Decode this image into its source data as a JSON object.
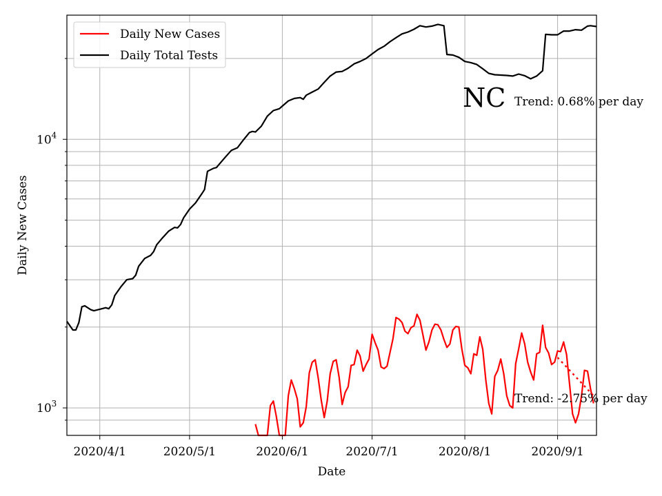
{
  "chart_data": {
    "type": "line",
    "title": "",
    "xlabel": "Date",
    "ylabel": "Daily New Cases",
    "yscale": "log",
    "ylim": [
      790,
      29000
    ],
    "xlim": [
      "2020-03-21",
      "2020-09-14"
    ],
    "grid": true,
    "legend_position": "top-left",
    "x_ticks": [
      {
        "date": "2020-04-01",
        "label": "2020/4/1"
      },
      {
        "date": "2020-05-01",
        "label": "2020/5/1"
      },
      {
        "date": "2020-06-01",
        "label": "2020/6/1"
      },
      {
        "date": "2020-07-01",
        "label": "2020/7/1"
      },
      {
        "date": "2020-08-01",
        "label": "2020/8/1"
      },
      {
        "date": "2020-09-01",
        "label": "2020/9/1"
      }
    ],
    "y_major_ticks": [
      {
        "value": 1000,
        "base": "10",
        "exp": "3"
      },
      {
        "value": 10000,
        "base": "10",
        "exp": "4"
      }
    ],
    "y_minor_ticks": [
      900,
      2000,
      3000,
      4000,
      5000,
      6000,
      7000,
      8000,
      9000,
      20000
    ],
    "annotations": {
      "state": "NC",
      "tests_trend": "Trend: 0.68% per day",
      "cases_trend": "Trend: -2.75% per day"
    },
    "series": [
      {
        "name": "Daily Total Tests",
        "color": "#000000",
        "points": [
          [
            "2020-03-21",
            2100
          ],
          [
            "2020-03-23",
            1950
          ],
          [
            "2020-03-24",
            1950
          ],
          [
            "2020-03-25",
            2080
          ],
          [
            "2020-03-26",
            2380
          ],
          [
            "2020-03-27",
            2400
          ],
          [
            "2020-03-29",
            2320
          ],
          [
            "2020-03-30",
            2300
          ],
          [
            "2020-04-01",
            2330
          ],
          [
            "2020-04-03",
            2360
          ],
          [
            "2020-04-04",
            2340
          ],
          [
            "2020-04-05",
            2420
          ],
          [
            "2020-04-06",
            2620
          ],
          [
            "2020-04-08",
            2820
          ],
          [
            "2020-04-10",
            3000
          ],
          [
            "2020-04-12",
            3030
          ],
          [
            "2020-04-13",
            3120
          ],
          [
            "2020-04-14",
            3370
          ],
          [
            "2020-04-16",
            3600
          ],
          [
            "2020-04-18",
            3700
          ],
          [
            "2020-04-19",
            3820
          ],
          [
            "2020-04-20",
            4050
          ],
          [
            "2020-04-22",
            4300
          ],
          [
            "2020-04-24",
            4550
          ],
          [
            "2020-04-26",
            4700
          ],
          [
            "2020-04-27",
            4680
          ],
          [
            "2020-04-28",
            4820
          ],
          [
            "2020-04-29",
            5100
          ],
          [
            "2020-05-01",
            5500
          ],
          [
            "2020-05-03",
            5800
          ],
          [
            "2020-05-05",
            6250
          ],
          [
            "2020-05-06",
            6500
          ],
          [
            "2020-05-07",
            7600
          ],
          [
            "2020-05-09",
            7800
          ],
          [
            "2020-05-10",
            7850
          ],
          [
            "2020-05-11",
            8100
          ],
          [
            "2020-05-13",
            8600
          ],
          [
            "2020-05-15",
            9100
          ],
          [
            "2020-05-17",
            9300
          ],
          [
            "2020-05-19",
            9950
          ],
          [
            "2020-05-21",
            10600
          ],
          [
            "2020-05-22",
            10700
          ],
          [
            "2020-05-23",
            10650
          ],
          [
            "2020-05-25",
            11200
          ],
          [
            "2020-05-27",
            12200
          ],
          [
            "2020-05-29",
            12800
          ],
          [
            "2020-05-31",
            13000
          ],
          [
            "2020-06-01",
            13300
          ],
          [
            "2020-06-03",
            13900
          ],
          [
            "2020-06-05",
            14200
          ],
          [
            "2020-06-07",
            14300
          ],
          [
            "2020-06-08",
            14100
          ],
          [
            "2020-06-09",
            14600
          ],
          [
            "2020-06-11",
            15000
          ],
          [
            "2020-06-13",
            15400
          ],
          [
            "2020-06-15",
            16300
          ],
          [
            "2020-06-17",
            17200
          ],
          [
            "2020-06-19",
            17800
          ],
          [
            "2020-06-21",
            17900
          ],
          [
            "2020-06-23",
            18400
          ],
          [
            "2020-06-25",
            19100
          ],
          [
            "2020-06-27",
            19500
          ],
          [
            "2020-06-29",
            20000
          ],
          [
            "2020-07-01",
            20800
          ],
          [
            "2020-07-03",
            21600
          ],
          [
            "2020-07-05",
            22200
          ],
          [
            "2020-07-07",
            23100
          ],
          [
            "2020-07-09",
            23900
          ],
          [
            "2020-07-11",
            24700
          ],
          [
            "2020-07-13",
            25100
          ],
          [
            "2020-07-15",
            25700
          ],
          [
            "2020-07-17",
            26500
          ],
          [
            "2020-07-19",
            26200
          ],
          [
            "2020-07-21",
            26400
          ],
          [
            "2020-07-23",
            26800
          ],
          [
            "2020-07-25",
            26500
          ],
          [
            "2020-07-26",
            20700
          ],
          [
            "2020-07-28",
            20600
          ],
          [
            "2020-07-30",
            20200
          ],
          [
            "2020-08-01",
            19500
          ],
          [
            "2020-08-03",
            19300
          ],
          [
            "2020-08-05",
            19000
          ],
          [
            "2020-08-07",
            18300
          ],
          [
            "2020-08-09",
            17600
          ],
          [
            "2020-08-11",
            17400
          ],
          [
            "2020-08-13",
            17350
          ],
          [
            "2020-08-15",
            17300
          ],
          [
            "2020-08-17",
            17200
          ],
          [
            "2020-08-19",
            17500
          ],
          [
            "2020-08-21",
            17250
          ],
          [
            "2020-08-23",
            16800
          ],
          [
            "2020-08-25",
            17200
          ],
          [
            "2020-08-27",
            18000
          ],
          [
            "2020-08-28",
            24600
          ],
          [
            "2020-08-30",
            24500
          ],
          [
            "2020-09-01",
            24500
          ],
          [
            "2020-09-03",
            25300
          ],
          [
            "2020-09-05",
            25300
          ],
          [
            "2020-09-07",
            25600
          ],
          [
            "2020-09-09",
            25500
          ],
          [
            "2020-09-11",
            26400
          ],
          [
            "2020-09-12",
            26500
          ],
          [
            "2020-09-14",
            26300
          ]
        ]
      },
      {
        "name": "Daily New Cases",
        "color": "#ff0000",
        "points": [
          [
            "2020-05-23",
            870
          ],
          [
            "2020-05-24",
            790
          ],
          [
            "2020-05-27",
            790
          ],
          [
            "2020-05-28",
            1020
          ],
          [
            "2020-05-29",
            1060
          ],
          [
            "2020-05-30",
            930
          ],
          [
            "2020-05-31",
            790
          ],
          [
            "2020-06-02",
            790
          ],
          [
            "2020-06-03",
            1110
          ],
          [
            "2020-06-04",
            1270
          ],
          [
            "2020-06-05",
            1180
          ],
          [
            "2020-06-06",
            1080
          ],
          [
            "2020-06-07",
            850
          ],
          [
            "2020-06-08",
            880
          ],
          [
            "2020-06-09",
            1010
          ],
          [
            "2020-06-10",
            1350
          ],
          [
            "2020-06-11",
            1480
          ],
          [
            "2020-06-12",
            1510
          ],
          [
            "2020-06-13",
            1290
          ],
          [
            "2020-06-14",
            1070
          ],
          [
            "2020-06-15",
            920
          ],
          [
            "2020-06-16",
            1060
          ],
          [
            "2020-06-17",
            1340
          ],
          [
            "2020-06-18",
            1490
          ],
          [
            "2020-06-19",
            1510
          ],
          [
            "2020-06-20",
            1300
          ],
          [
            "2020-06-21",
            1030
          ],
          [
            "2020-06-22",
            1140
          ],
          [
            "2020-06-23",
            1200
          ],
          [
            "2020-06-24",
            1440
          ],
          [
            "2020-06-25",
            1450
          ],
          [
            "2020-06-26",
            1640
          ],
          [
            "2020-06-27",
            1560
          ],
          [
            "2020-06-28",
            1370
          ],
          [
            "2020-06-29",
            1450
          ],
          [
            "2020-06-30",
            1520
          ],
          [
            "2020-07-01",
            1880
          ],
          [
            "2020-07-02",
            1750
          ],
          [
            "2020-07-03",
            1640
          ],
          [
            "2020-07-04",
            1420
          ],
          [
            "2020-07-05",
            1400
          ],
          [
            "2020-07-06",
            1430
          ],
          [
            "2020-07-07",
            1610
          ],
          [
            "2020-07-08",
            1810
          ],
          [
            "2020-07-09",
            2170
          ],
          [
            "2020-07-10",
            2140
          ],
          [
            "2020-07-11",
            2080
          ],
          [
            "2020-07-12",
            1930
          ],
          [
            "2020-07-13",
            1890
          ],
          [
            "2020-07-14",
            1990
          ],
          [
            "2020-07-15",
            2020
          ],
          [
            "2020-07-16",
            2230
          ],
          [
            "2020-07-17",
            2120
          ],
          [
            "2020-07-18",
            1870
          ],
          [
            "2020-07-19",
            1640
          ],
          [
            "2020-07-20",
            1760
          ],
          [
            "2020-07-21",
            1950
          ],
          [
            "2020-07-22",
            2050
          ],
          [
            "2020-07-23",
            2040
          ],
          [
            "2020-07-24",
            1950
          ],
          [
            "2020-07-25",
            1800
          ],
          [
            "2020-07-26",
            1680
          ],
          [
            "2020-07-27",
            1730
          ],
          [
            "2020-07-28",
            1950
          ],
          [
            "2020-07-29",
            2010
          ],
          [
            "2020-07-30",
            2000
          ],
          [
            "2020-07-31",
            1660
          ],
          [
            "2020-08-01",
            1440
          ],
          [
            "2020-08-02",
            1410
          ],
          [
            "2020-08-03",
            1340
          ],
          [
            "2020-08-04",
            1590
          ],
          [
            "2020-08-05",
            1570
          ],
          [
            "2020-08-06",
            1840
          ],
          [
            "2020-08-07",
            1650
          ],
          [
            "2020-08-08",
            1270
          ],
          [
            "2020-08-09",
            1040
          ],
          [
            "2020-08-10",
            950
          ],
          [
            "2020-08-11",
            1310
          ],
          [
            "2020-08-12",
            1380
          ],
          [
            "2020-08-13",
            1520
          ],
          [
            "2020-08-14",
            1340
          ],
          [
            "2020-08-15",
            1110
          ],
          [
            "2020-08-16",
            1020
          ],
          [
            "2020-08-17",
            1000
          ],
          [
            "2020-08-18",
            1460
          ],
          [
            "2020-08-19",
            1660
          ],
          [
            "2020-08-20",
            1900
          ],
          [
            "2020-08-21",
            1730
          ],
          [
            "2020-08-22",
            1480
          ],
          [
            "2020-08-23",
            1360
          ],
          [
            "2020-08-24",
            1270
          ],
          [
            "2020-08-25",
            1590
          ],
          [
            "2020-08-26",
            1610
          ],
          [
            "2020-08-27",
            2030
          ],
          [
            "2020-08-28",
            1680
          ],
          [
            "2020-08-29",
            1600
          ],
          [
            "2020-08-30",
            1450
          ],
          [
            "2020-08-31",
            1480
          ],
          [
            "2020-09-01",
            1630
          ],
          [
            "2020-09-02",
            1620
          ],
          [
            "2020-09-03",
            1760
          ],
          [
            "2020-09-04",
            1580
          ],
          [
            "2020-09-05",
            1230
          ],
          [
            "2020-09-06",
            950
          ],
          [
            "2020-09-07",
            880
          ],
          [
            "2020-09-08",
            950
          ],
          [
            "2020-09-09",
            1110
          ],
          [
            "2020-09-10",
            1380
          ],
          [
            "2020-09-11",
            1370
          ],
          [
            "2020-09-12",
            1180
          ],
          [
            "2020-09-13",
            1040
          ]
        ]
      }
    ],
    "trend_lines": [
      {
        "series": "Daily New Cases",
        "style": "dotted",
        "color": "#ff0000",
        "points": [
          [
            "2020-09-01",
            1540
          ],
          [
            "2020-09-13",
            1110
          ]
        ]
      }
    ]
  }
}
